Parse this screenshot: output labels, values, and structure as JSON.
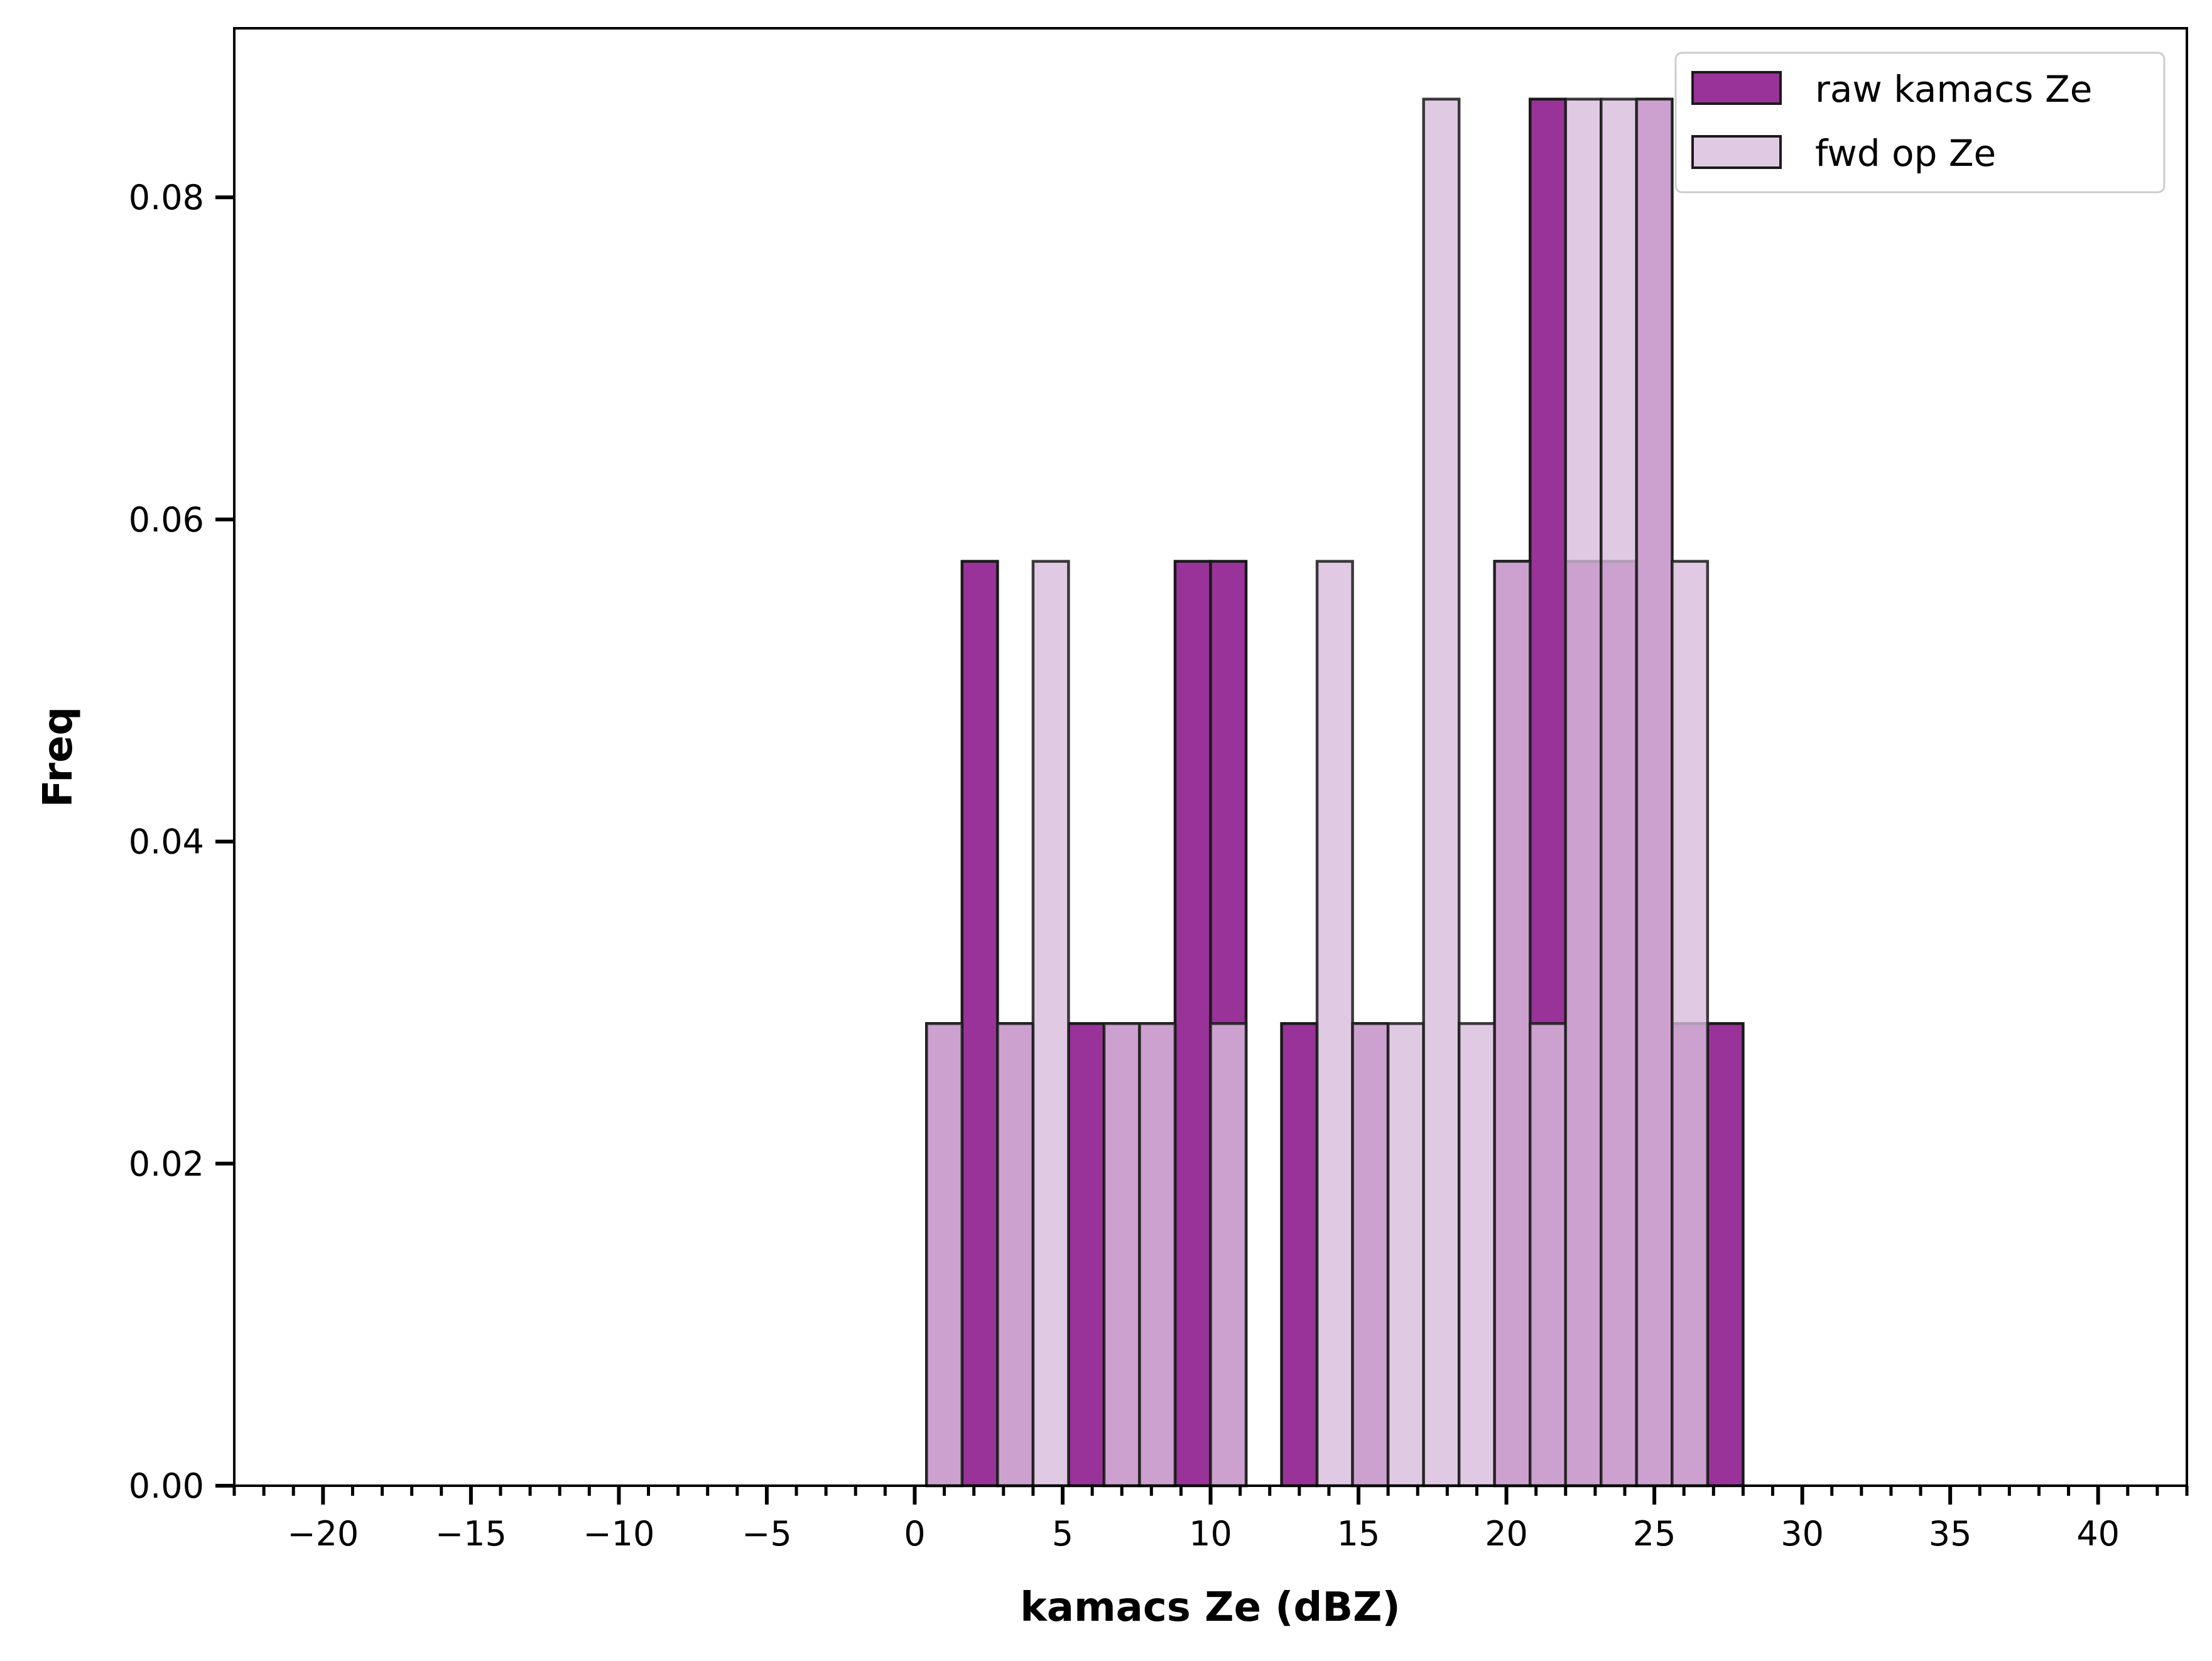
{
  "chart_data": {
    "type": "bar",
    "title": "",
    "xlabel": "kamacs Ze (dBZ)",
    "ylabel": "Freq",
    "xlim": [
      -23,
      43
    ],
    "ylim": [
      0,
      0.0905
    ],
    "xticks": [
      -20,
      -15,
      -10,
      -5,
      0,
      5,
      10,
      15,
      20,
      25,
      30,
      35,
      40
    ],
    "xtick_labels": [
      "−20",
      "−15",
      "−10",
      "−5",
      "0",
      "5",
      "10",
      "15",
      "20",
      "25",
      "30",
      "35",
      "40"
    ],
    "x_minor_step": 1,
    "yticks": [
      0,
      0.02,
      0.04,
      0.06,
      0.08
    ],
    "ytick_labels": [
      "0.00",
      "0.02",
      "0.04",
      "0.06",
      "0.08"
    ],
    "grid": false,
    "legend_position": "top-right",
    "series": [
      {
        "name": "raw kamacs Ze",
        "color": "#993399",
        "opacity": 1,
        "bins": [
          {
            "x0": 0.4,
            "x1": 1.6,
            "value": 0.0287
          },
          {
            "x0": 1.6,
            "x1": 2.8,
            "value": 0.0574
          },
          {
            "x0": 2.8,
            "x1": 4.0,
            "value": 0.0287
          },
          {
            "x0": 5.2,
            "x1": 6.4,
            "value": 0.0287
          },
          {
            "x0": 6.4,
            "x1": 7.6,
            "value": 0.0287
          },
          {
            "x0": 7.6,
            "x1": 8.8,
            "value": 0.0287
          },
          {
            "x0": 8.8,
            "x1": 10.0,
            "value": 0.0574
          },
          {
            "x0": 10.0,
            "x1": 11.2,
            "value": 0.0574
          },
          {
            "x0": 12.4,
            "x1": 13.6,
            "value": 0.0287
          },
          {
            "x0": 14.8,
            "x1": 16.0,
            "value": 0.0287
          },
          {
            "x0": 19.6,
            "x1": 20.8,
            "value": 0.0574
          },
          {
            "x0": 20.8,
            "x1": 22.0,
            "value": 0.0861
          },
          {
            "x0": 22.0,
            "x1": 23.2,
            "value": 0.0574
          },
          {
            "x0": 23.2,
            "x1": 24.4,
            "value": 0.0574
          },
          {
            "x0": 24.4,
            "x1": 25.6,
            "value": 0.0861
          },
          {
            "x0": 25.6,
            "x1": 26.8,
            "value": 0.0287
          },
          {
            "x0": 26.8,
            "x1": 28.0,
            "value": 0.0287
          }
        ]
      },
      {
        "name": "fwd op Ze",
        "color": "#d8bddc",
        "opacity": 0.8,
        "bins": [
          {
            "x0": 0.4,
            "x1": 1.6,
            "value": 0.0287
          },
          {
            "x0": 2.8,
            "x1": 4.0,
            "value": 0.0287
          },
          {
            "x0": 4.0,
            "x1": 5.2,
            "value": 0.0574
          },
          {
            "x0": 6.4,
            "x1": 7.6,
            "value": 0.0287
          },
          {
            "x0": 7.6,
            "x1": 8.8,
            "value": 0.0287
          },
          {
            "x0": 10.0,
            "x1": 11.2,
            "value": 0.0287
          },
          {
            "x0": 13.6,
            "x1": 14.8,
            "value": 0.0574
          },
          {
            "x0": 14.8,
            "x1": 16.0,
            "value": 0.0287
          },
          {
            "x0": 16.0,
            "x1": 17.2,
            "value": 0.0287
          },
          {
            "x0": 17.2,
            "x1": 18.4,
            "value": 0.0861
          },
          {
            "x0": 18.4,
            "x1": 19.6,
            "value": 0.0287
          },
          {
            "x0": 19.6,
            "x1": 20.8,
            "value": 0.0574
          },
          {
            "x0": 20.8,
            "x1": 22.0,
            "value": 0.0287
          },
          {
            "x0": 22.0,
            "x1": 23.2,
            "value": 0.0861
          },
          {
            "x0": 23.2,
            "x1": 24.4,
            "value": 0.0861
          },
          {
            "x0": 24.4,
            "x1": 25.6,
            "value": 0.0861
          },
          {
            "x0": 25.6,
            "x1": 26.8,
            "value": 0.0574
          }
        ]
      }
    ]
  }
}
